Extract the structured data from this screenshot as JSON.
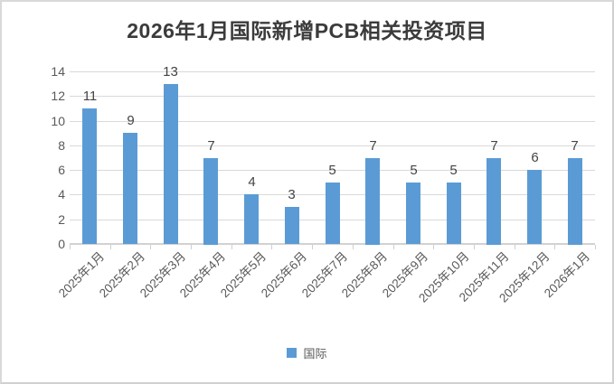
{
  "title": "2026年1月国际新增PCB相关投资项目",
  "legend": {
    "label": "国际",
    "color": "#5b9bd5"
  },
  "colors": {
    "bar": "#5b9bd5",
    "gridline": "#d9d9d9",
    "axis": "#d2d2d2",
    "axis_text": "#595959",
    "data_label_text": "#444444",
    "title_text": "#3b3b3b",
    "frame_border": "#d9d9d9"
  },
  "chart_data": {
    "type": "bar",
    "title": "2026年1月国际新增PCB相关投资项目",
    "categories": [
      "2025年1月",
      "2025年2月",
      "2025年3月",
      "2025年4月",
      "2025年5月",
      "2025年6月",
      "2025年7月",
      "2025年8月",
      "2025年9月",
      "2025年10月",
      "2025年11月",
      "2025年12月",
      "2026年1月"
    ],
    "series": [
      {
        "name": "国际",
        "values": [
          11,
          9,
          13,
          7,
          4,
          3,
          5,
          7,
          5,
          5,
          7,
          6,
          7
        ]
      }
    ],
    "data_labels": true,
    "xlabel": "",
    "ylabel": "",
    "ylim": [
      0,
      14
    ],
    "yticks": [
      0,
      2,
      4,
      6,
      8,
      10,
      12,
      14
    ],
    "grid": true,
    "legend_position": "bottom"
  }
}
